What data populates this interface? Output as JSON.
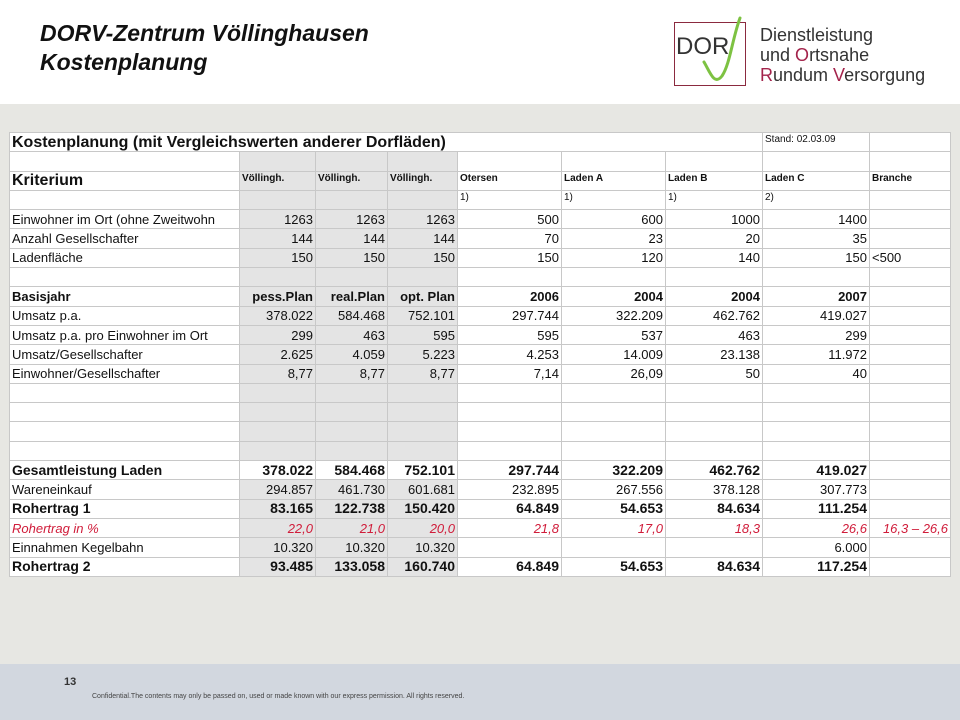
{
  "header": {
    "title_line1": "DORV-Zentrum Völlinghausen",
    "title_line2": "Kostenplanung"
  },
  "logo": {
    "mark": "DOR",
    "line1": "Dienstleistung",
    "line2_prefix": "und ",
    "line2_initial": "O",
    "line2_rest": "rtsnahe",
    "line3_initial": "R",
    "line3_mid": "undum ",
    "line3_initial2": "V",
    "line3_rest": "ersorgung",
    "accent_color": "#a3234b",
    "check_color": "#7dc242"
  },
  "sheet": {
    "title": "Kostenplanung (mit Vergleichswerten anderer Dorfläden)",
    "stand": "Stand: 02.03.09",
    "kriterium": "Kriterium",
    "col_heads": [
      "Völlingh.",
      "Völlingh.",
      "Völlingh.",
      "Otersen",
      "Laden A",
      "Laden B",
      "Laden C",
      "Branche"
    ],
    "footnotes": [
      "",
      "",
      "",
      "1)",
      "1)",
      "1)",
      "2)",
      ""
    ],
    "rows_a": [
      {
        "label": "Einwohner im Ort (ohne Zweitwohn",
        "v": [
          "1263",
          "1263",
          "1263",
          "500",
          "600",
          "1000",
          "1400",
          ""
        ]
      },
      {
        "label": "Anzahl Gesellschafter",
        "v": [
          "144",
          "144",
          "144",
          "70",
          "23",
          "20",
          "35",
          ""
        ]
      },
      {
        "label": "Ladenfläche",
        "v": [
          "150",
          "150",
          "150",
          "150",
          "120",
          "140",
          "150",
          "<500"
        ]
      }
    ],
    "basis": {
      "label": "Basisjahr",
      "v": [
        "pess.Plan",
        "real.Plan",
        "opt. Plan",
        "2006",
        "2004",
        "2004",
        "2007",
        ""
      ]
    },
    "rows_b": [
      {
        "label": "Umsatz p.a.",
        "v": [
          "378.022",
          "584.468",
          "752.101",
          "297.744",
          "322.209",
          "462.762",
          "419.027",
          ""
        ]
      },
      {
        "label": "Umsatz p.a. pro Einwohner im Ort",
        "v": [
          "299",
          "463",
          "595",
          "595",
          "537",
          "463",
          "299",
          ""
        ]
      },
      {
        "label": "Umsatz/Gesellschafter",
        "v": [
          "2.625",
          "4.059",
          "5.223",
          "4.253",
          "14.009",
          "23.138",
          "11.972",
          ""
        ]
      },
      {
        "label": "Einwohner/Gesellschafter",
        "v": [
          "8,77",
          "8,77",
          "8,77",
          "7,14",
          "26,09",
          "50",
          "40",
          ""
        ]
      }
    ],
    "rows_c": [
      {
        "label": "Gesamtleistung Laden",
        "bold": true,
        "red": false,
        "v": [
          "378.022",
          "584.468",
          "752.101",
          "297.744",
          "322.209",
          "462.762",
          "419.027",
          ""
        ]
      },
      {
        "label": "Wareneinkauf",
        "bold": false,
        "red": false,
        "v": [
          "294.857",
          "461.730",
          "601.681",
          "232.895",
          "267.556",
          "378.128",
          "307.773",
          ""
        ]
      },
      {
        "label": "Rohertrag 1",
        "bold": true,
        "red": false,
        "v": [
          "83.165",
          "122.738",
          "150.420",
          "64.849",
          "54.653",
          "84.634",
          "111.254",
          ""
        ]
      },
      {
        "label": "Rohertrag in %",
        "bold": false,
        "red": true,
        "v": [
          "22,0",
          "21,0",
          "20,0",
          "21,8",
          "17,0",
          "18,3",
          "26,6",
          "16,3 – 26,6"
        ]
      },
      {
        "label": "Einnahmen Kegelbahn",
        "bold": false,
        "red": false,
        "v": [
          "10.320",
          "10.320",
          "10.320",
          "",
          "",
          "",
          "6.000",
          ""
        ]
      },
      {
        "label": "Rohertrag 2",
        "bold": true,
        "red": false,
        "v": [
          "93.485",
          "133.058",
          "160.740",
          "64.849",
          "54.653",
          "84.634",
          "117.254",
          ""
        ]
      }
    ]
  },
  "footer": {
    "page": "13",
    "confidential": "Confidential.The contents may only be passed on, used or made known with our express permission. All rights reserved."
  }
}
